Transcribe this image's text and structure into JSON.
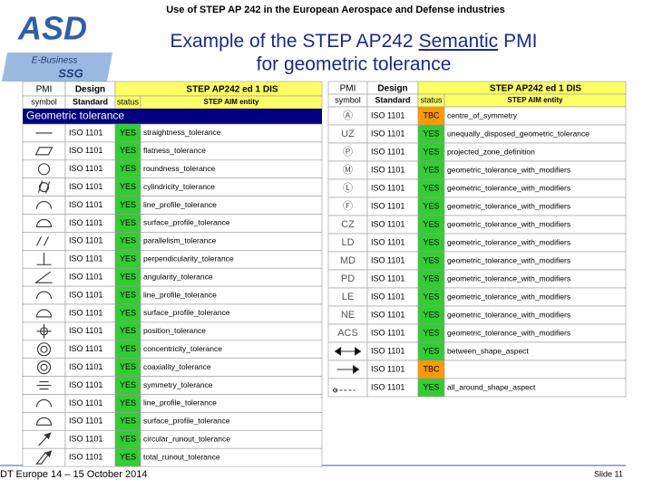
{
  "header": "Use of STEP AP 242 in the European Aerospace and Defense industries",
  "logo": {
    "name": "ASD",
    "subtitle": "E-Business",
    "group": "SSG"
  },
  "title": {
    "line1_before": "Example of the STEP AP242",
    "line1_underlined": "Semantic",
    "line1_after": "PMI",
    "line2": "for geometric tolerance"
  },
  "left_table": {
    "headers": {
      "row1": [
        "PMI",
        "Design",
        "STEP AP242 ed 1 DIS"
      ],
      "row2": [
        "symbol",
        "Standard",
        "status",
        "STEP AIM entity"
      ]
    },
    "section": "Geometric tolerance",
    "rows": [
      {
        "standard": "ISO 1101",
        "status": "YES",
        "entity": "straightness_tolerance"
      },
      {
        "standard": "ISO 1101",
        "status": "YES",
        "entity": "flatness_tolerance"
      },
      {
        "standard": "ISO 1101",
        "status": "YES",
        "entity": "roundness_tolerance"
      },
      {
        "standard": "ISO 1101",
        "status": "YES",
        "entity": "cylindricity_tolerance"
      },
      {
        "standard": "ISO 1101",
        "status": "YES",
        "entity": "line_profile_tolerance"
      },
      {
        "standard": "ISO 1101",
        "status": "YES",
        "entity": "surface_profile_tolerance"
      },
      {
        "standard": "ISO 1101",
        "status": "YES",
        "entity": "parallelism_tolerance"
      },
      {
        "standard": "ISO 1101",
        "status": "YES",
        "entity": "perpendicularity_tolerance"
      },
      {
        "standard": "ISO 1101",
        "status": "YES",
        "entity": "angularity_tolerance"
      },
      {
        "standard": "ISO 1101",
        "status": "YES",
        "entity": "line_profile_tolerance"
      },
      {
        "standard": "ISO 1101",
        "status": "YES",
        "entity": "surface_profile_tolerance"
      },
      {
        "standard": "ISO 1101",
        "status": "YES",
        "entity": "position_tolerance"
      },
      {
        "standard": "ISO 1101",
        "status": "YES",
        "entity": "concentricity_tolerance"
      },
      {
        "standard": "ISO 1101",
        "status": "YES",
        "entity": "coaxiality_tolerance"
      },
      {
        "standard": "ISO 1101",
        "status": "YES",
        "entity": "symmetry_tolerance"
      },
      {
        "standard": "ISO 1101",
        "status": "YES",
        "entity": "line_profile_tolerance"
      },
      {
        "standard": "ISO 1101",
        "status": "YES",
        "entity": "surface_profile_tolerance"
      },
      {
        "standard": "ISO 1101",
        "status": "YES",
        "entity": "circular_runout_tolerance"
      },
      {
        "standard": "ISO 1101",
        "status": "YES",
        "entity": "total_runout_tolerance"
      }
    ]
  },
  "right_table": {
    "headers": {
      "row1": [
        "PMI",
        "Design",
        "STEP AP242 ed 1 DIS"
      ],
      "row2": [
        "symbol",
        "Standard",
        "status",
        "STEP AIM entity"
      ]
    },
    "rows": [
      {
        "symbol": "Ⓐ",
        "standard": "ISO 1101",
        "status": "TBC",
        "entity": "centre_of_symmetry"
      },
      {
        "symbol": "UZ",
        "standard": "ISO 1101",
        "status": "YES",
        "entity": "unequally_disposed_geometric_tolerance"
      },
      {
        "symbol": "Ⓟ",
        "standard": "ISO 1101",
        "status": "YES",
        "entity": "projected_zone_definition"
      },
      {
        "symbol": "Ⓜ",
        "standard": "ISO 1101",
        "status": "YES",
        "entity": "geometric_tolerance_with_modifiers"
      },
      {
        "symbol": "Ⓛ",
        "standard": "ISO 1101",
        "status": "YES",
        "entity": "geometric_tolerance_with_modifiers"
      },
      {
        "symbol": "Ⓕ",
        "standard": "ISO 1101",
        "status": "YES",
        "entity": "geometric_tolerance_with_modifiers"
      },
      {
        "symbol": "CZ",
        "standard": "ISO 1101",
        "status": "YES",
        "entity": "geometric_tolerance_with_modifiers"
      },
      {
        "symbol": "LD",
        "standard": "ISO 1101",
        "status": "YES",
        "entity": "geometric_tolerance_with_modifiers"
      },
      {
        "symbol": "MD",
        "standard": "ISO 1101",
        "status": "YES",
        "entity": "geometric_tolerance_with_modifiers"
      },
      {
        "symbol": "PD",
        "standard": "ISO 1101",
        "status": "YES",
        "entity": "geometric_tolerance_with_modifiers"
      },
      {
        "symbol": "LE",
        "standard": "ISO 1101",
        "status": "YES",
        "entity": "geometric_tolerance_with_modifiers"
      },
      {
        "symbol": "NE",
        "standard": "ISO 1101",
        "status": "YES",
        "entity": "geometric_tolerance_with_modifiers"
      },
      {
        "symbol": "ACS",
        "standard": "ISO 1101",
        "status": "YES",
        "entity": "geometric_tolerance_with_modifiers"
      },
      {
        "standard": "ISO 1101",
        "status": "YES",
        "entity": "between_shape_aspect"
      },
      {
        "standard": "ISO 1101",
        "status": "TBC"
      },
      {
        "standard": "ISO 1101",
        "status": "YES",
        "entity": "all_around_shape_aspect"
      }
    ]
  },
  "footer": {
    "event": "DT Europe 14 – 15 October 2014",
    "slide": "Slide 11"
  }
}
